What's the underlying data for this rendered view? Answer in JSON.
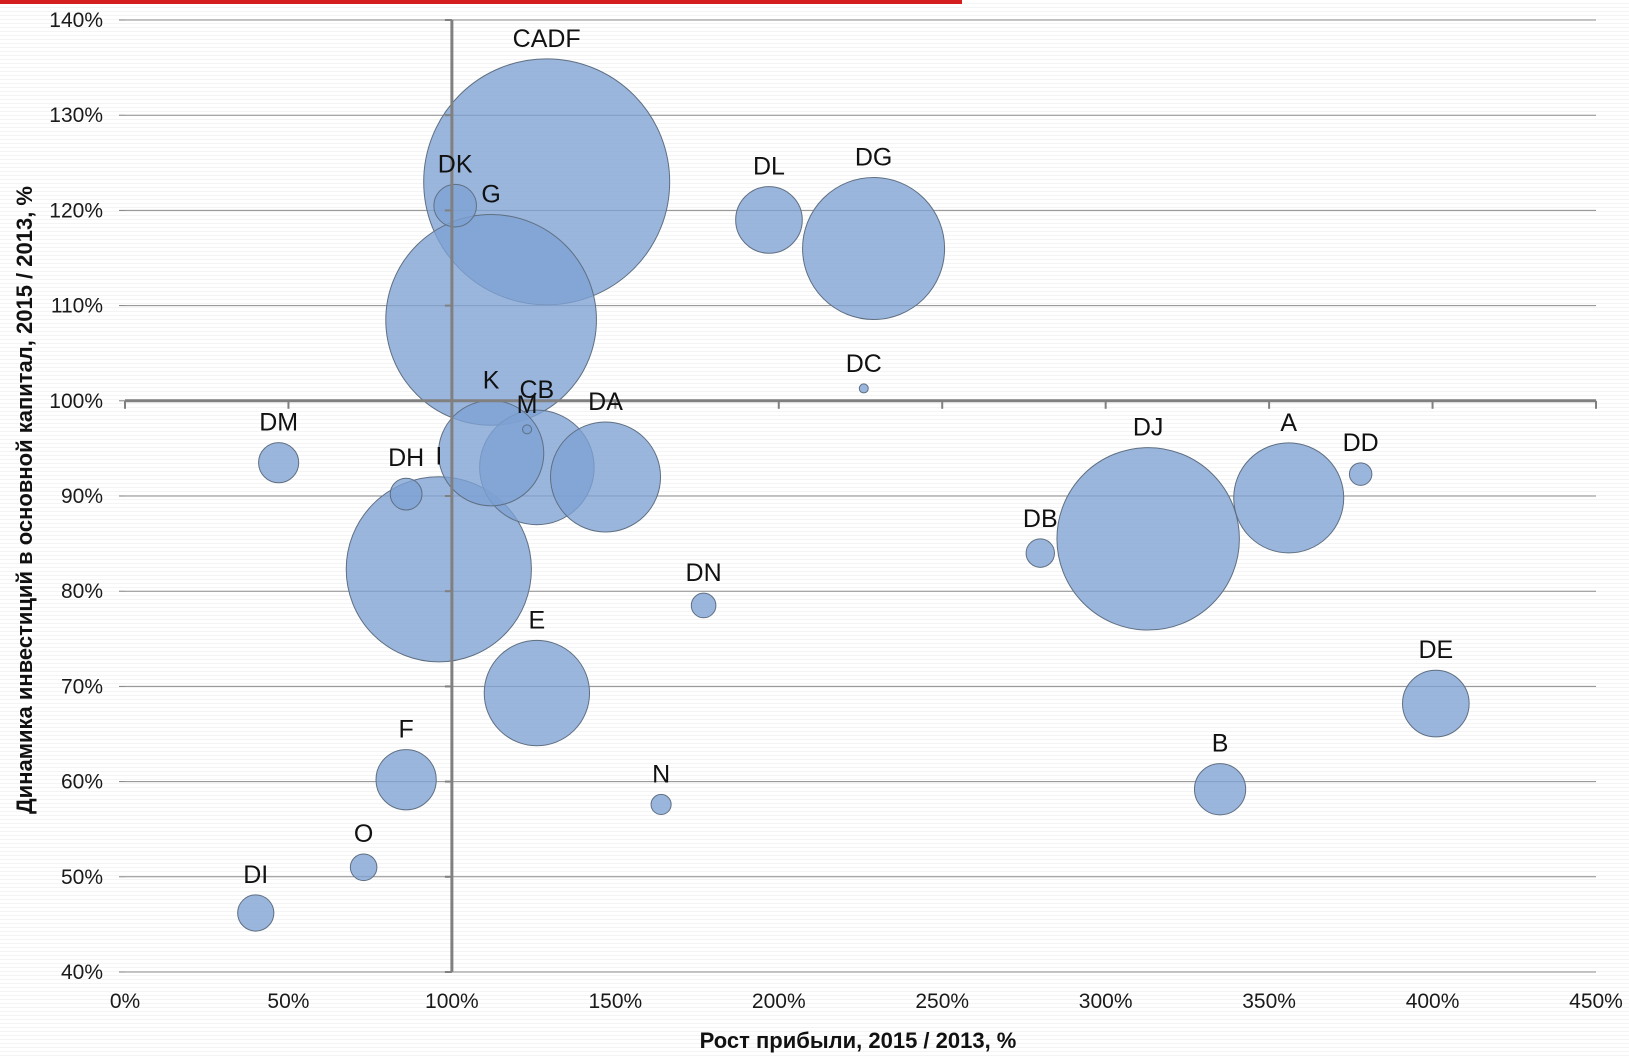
{
  "colors": {
    "bubble_fill": "#7ea1d3",
    "bubble_stroke": "#5f6f82",
    "axis": "#808080",
    "gridline": "#8c8c8c",
    "accent_bar": "#d51f1f"
  },
  "chart_data": {
    "type": "scatter",
    "subtype": "bubble",
    "title": "",
    "xlabel": "Рост прибыли, 2015 / 2013, %",
    "ylabel": "Динамика инвестиций в основной капитал, 2015 / 2013, %",
    "xlim": [
      0,
      450
    ],
    "ylim": [
      40,
      140
    ],
    "x_ticks": [
      "0%",
      "50%",
      "100%",
      "150%",
      "200%",
      "250%",
      "300%",
      "350%",
      "400%",
      "450%"
    ],
    "y_ticks": [
      "40%",
      "50%",
      "60%",
      "70%",
      "80%",
      "90%",
      "100%",
      "110%",
      "120%",
      "130%",
      "140%"
    ],
    "grid": "horizontal",
    "legend": "none",
    "reference_lines": {
      "x": 100,
      "y": 100
    },
    "points": [
      {
        "label": "CADF",
        "x": 129,
        "y": 123,
        "size": 3
      },
      {
        "label": "G",
        "x": 112,
        "y": 108.5,
        "size": 2.2
      },
      {
        "label": "DK",
        "x": 101,
        "y": 120.5,
        "size": 0.09
      },
      {
        "label": "DL",
        "x": 197,
        "y": 119,
        "size": 0.22
      },
      {
        "label": "DG",
        "x": 229,
        "y": 116,
        "size": 1
      },
      {
        "label": "DC",
        "x": 226,
        "y": 101.3,
        "size": 0.004
      },
      {
        "label": "K",
        "x": 112,
        "y": 94.5,
        "size": 0.55
      },
      {
        "label": "M",
        "x": 123,
        "y": 97,
        "size": 0.002
      },
      {
        "label": "CB",
        "x": 126,
        "y": 93,
        "size": 0.65
      },
      {
        "label": "DA",
        "x": 147,
        "y": 92,
        "size": 0.6
      },
      {
        "label": "DM",
        "x": 47,
        "y": 93.5,
        "size": 0.08
      },
      {
        "label": "DH",
        "x": 86,
        "y": 90.2,
        "size": 0.05
      },
      {
        "label": "I",
        "x": 96,
        "y": 82.3,
        "size": 1.7
      },
      {
        "label": "DN",
        "x": 177,
        "y": 78.5,
        "size": 0.03
      },
      {
        "label": "E",
        "x": 126,
        "y": 69.3,
        "size": 0.55
      },
      {
        "label": "F",
        "x": 86,
        "y": 60.2,
        "size": 0.18
      },
      {
        "label": "N",
        "x": 164,
        "y": 57.6,
        "size": 0.02
      },
      {
        "label": "O",
        "x": 73,
        "y": 51,
        "size": 0.035
      },
      {
        "label": "DI",
        "x": 40,
        "y": 46.2,
        "size": 0.065
      },
      {
        "label": "DB",
        "x": 280,
        "y": 84,
        "size": 0.04
      },
      {
        "label": "DJ",
        "x": 313,
        "y": 85.5,
        "size": 1.65
      },
      {
        "label": "A",
        "x": 356,
        "y": 89.8,
        "size": 0.6
      },
      {
        "label": "DD",
        "x": 378,
        "y": 92.3,
        "size": 0.025
      },
      {
        "label": "DE",
        "x": 401,
        "y": 68.2,
        "size": 0.22
      },
      {
        "label": "B",
        "x": 335,
        "y": 59.2,
        "size": 0.13
      }
    ]
  }
}
